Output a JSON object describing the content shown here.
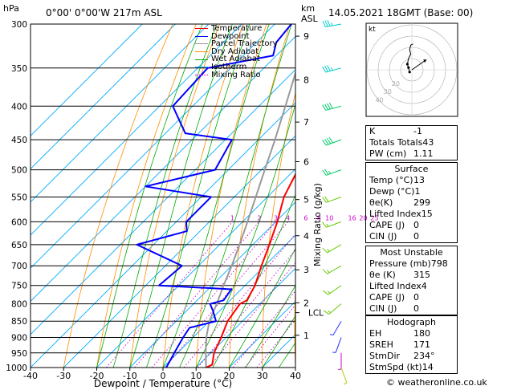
{
  "header": {
    "location": "0°00' 0°00'W  217m  ASL",
    "datetime": "14.05.2021  18GMT  (Base: 00)",
    "hpa_label": "hPa",
    "km_label": "km",
    "asl_label": "ASL"
  },
  "chart_data": {
    "type": "skew-t log-p",
    "xlabel": "Dewpoint / Temperature (°C)",
    "ylabel_right": "Mixing Ratio (g/kg)",
    "x_ticks": [
      -40,
      -30,
      -20,
      -10,
      0,
      10,
      20,
      30,
      40
    ],
    "pressure_levels": [
      300,
      350,
      400,
      450,
      500,
      550,
      600,
      650,
      700,
      750,
      800,
      850,
      900,
      950,
      1000
    ],
    "km_ticks": [
      {
        "km": 9,
        "p": 313
      },
      {
        "km": 8,
        "p": 365
      },
      {
        "km": 7,
        "p": 423
      },
      {
        "km": 6,
        "p": 486
      },
      {
        "km": 5,
        "p": 555
      },
      {
        "km": 4,
        "p": 630
      },
      {
        "km": 3,
        "p": 710
      },
      {
        "km": 2,
        "p": 797
      },
      {
        "km": 1,
        "p": 893
      }
    ],
    "lcl": {
      "label": "LCL",
      "p": 825
    },
    "mixing_ratio_labels": [
      "1",
      "2",
      "3",
      "4",
      "6",
      "8",
      "10",
      "16",
      "20",
      "25"
    ],
    "mixing_ratio_values": [
      1,
      2,
      3,
      4,
      6,
      8,
      10,
      16,
      20,
      25
    ],
    "temperature_profile": [
      {
        "p": 1000,
        "t": 13.0
      },
      {
        "p": 990,
        "t": 14.0
      },
      {
        "p": 950,
        "t": 11.0
      },
      {
        "p": 900,
        "t": 8.5
      },
      {
        "p": 850,
        "t": 5.5
      },
      {
        "p": 800,
        "t": 4.0
      },
      {
        "p": 790,
        "t": 5.0
      },
      {
        "p": 750,
        "t": 3.0
      },
      {
        "p": 700,
        "t": -1.0
      },
      {
        "p": 650,
        "t": -5.0
      },
      {
        "p": 600,
        "t": -9.5
      },
      {
        "p": 550,
        "t": -15.0
      },
      {
        "p": 500,
        "t": -19.0
      },
      {
        "p": 450,
        "t": -25.0
      },
      {
        "p": 420,
        "t": -26.0
      },
      {
        "p": 400,
        "t": -30.0
      },
      {
        "p": 350,
        "t": -38.0
      },
      {
        "p": 300,
        "t": -45.0
      }
    ],
    "dewpoint_profile": [
      {
        "p": 1000,
        "t": 1.0
      },
      {
        "p": 950,
        "t": -1.0
      },
      {
        "p": 900,
        "t": -3.0
      },
      {
        "p": 870,
        "t": -4.0
      },
      {
        "p": 850,
        "t": 2.0
      },
      {
        "p": 820,
        "t": -2.0
      },
      {
        "p": 800,
        "t": -5.0
      },
      {
        "p": 790,
        "t": -2.0
      },
      {
        "p": 760,
        "t": -3.0
      },
      {
        "p": 750,
        "t": -26.0
      },
      {
        "p": 700,
        "t": -25.0
      },
      {
        "p": 650,
        "t": -45.0
      },
      {
        "p": 620,
        "t": -34.0
      },
      {
        "p": 600,
        "t": -37.0
      },
      {
        "p": 550,
        "t": -37.0
      },
      {
        "p": 530,
        "t": -60.0
      },
      {
        "p": 500,
        "t": -44.0
      },
      {
        "p": 450,
        "t": -48.0
      },
      {
        "p": 440,
        "t": -64.0
      },
      {
        "p": 400,
        "t": -76.0
      },
      {
        "p": 350,
        "t": -77.0
      },
      {
        "p": 335,
        "t": -61.0
      },
      {
        "p": 320,
        "t": -64.0
      },
      {
        "p": 300,
        "t": -65.0
      }
    ],
    "parcel_trajectory": [
      {
        "p": 1000,
        "t": 13.0
      },
      {
        "p": 950,
        "t": 8.5
      },
      {
        "p": 900,
        "t": 4.0
      },
      {
        "p": 850,
        "t": 0.0
      },
      {
        "p": 825,
        "t": -1.5
      },
      {
        "p": 800,
        "t": -3.0
      },
      {
        "p": 750,
        "t": -6.5
      },
      {
        "p": 700,
        "t": -10.0
      },
      {
        "p": 650,
        "t": -14.0
      },
      {
        "p": 600,
        "t": -18.5
      },
      {
        "p": 550,
        "t": -23.5
      },
      {
        "p": 500,
        "t": -29.0
      },
      {
        "p": 450,
        "t": -35.0
      },
      {
        "p": 400,
        "t": -42.0
      },
      {
        "p": 350,
        "t": -50.0
      },
      {
        "p": 300,
        "t": -58.0
      }
    ],
    "wind_barbs": [
      {
        "p": 300,
        "dir": 260,
        "kt": 35
      },
      {
        "p": 350,
        "dir": 255,
        "kt": 35
      },
      {
        "p": 400,
        "dir": 255,
        "kt": 40
      },
      {
        "p": 450,
        "dir": 250,
        "kt": 40
      },
      {
        "p": 500,
        "dir": 250,
        "kt": 25
      },
      {
        "p": 550,
        "dir": 250,
        "kt": 20
      },
      {
        "p": 600,
        "dir": 250,
        "kt": 15
      },
      {
        "p": 650,
        "dir": 240,
        "kt": 15
      },
      {
        "p": 700,
        "dir": 240,
        "kt": 15
      },
      {
        "p": 750,
        "dir": 235,
        "kt": 15
      },
      {
        "p": 800,
        "dir": 230,
        "kt": 15
      },
      {
        "p": 850,
        "dir": 210,
        "kt": 5
      },
      {
        "p": 900,
        "dir": 200,
        "kt": 5
      },
      {
        "p": 950,
        "dir": 180,
        "kt": 5
      },
      {
        "p": 1000,
        "dir": 160,
        "kt": 5
      }
    ]
  },
  "legend": [
    {
      "label": "Temperature",
      "color": "#ff0000",
      "style": "solid"
    },
    {
      "label": "Dewpoint",
      "color": "#0000ff",
      "style": "solid"
    },
    {
      "label": "Parcel Trajectory",
      "color": "#999999",
      "style": "solid"
    },
    {
      "label": "Dry Adiabat",
      "color": "#ff8c00",
      "style": "solid"
    },
    {
      "label": "Wet Adiabat",
      "color": "#00aa00",
      "style": "solid"
    },
    {
      "label": "Isotherm",
      "color": "#00aaff",
      "style": "solid"
    },
    {
      "label": "Mixing Ratio",
      "color": "#cc00cc",
      "style": "dotted"
    }
  ],
  "hodograph": {
    "label": "kt",
    "rings": [
      "10",
      "20",
      "30",
      "40"
    ],
    "ring_labels": [
      "20",
      "30",
      "40"
    ],
    "trace_kt": [
      [
        -2,
        -2
      ],
      [
        -3,
        2
      ],
      [
        -4,
        5
      ],
      [
        -3,
        10
      ],
      [
        -1,
        14
      ],
      [
        -2,
        18
      ],
      [
        -1,
        22
      ],
      [
        1,
        23
      ]
    ],
    "storm_motion_kt": [
      10,
      7
    ]
  },
  "indices": {
    "k": {
      "label": "K",
      "value": "-1"
    },
    "tt": {
      "label": "Totals Totals",
      "value": "43"
    },
    "pw": {
      "label": "PW (cm)",
      "value": "1.11"
    }
  },
  "surface": {
    "title": "Surface",
    "temp": {
      "label": "Temp (°C)",
      "value": "13"
    },
    "dewp": {
      "label": "Dewp (°C)",
      "value": "1"
    },
    "theta_e": {
      "label": "θe(K)",
      "value": "299"
    },
    "li": {
      "label": "Lifted Index",
      "value": "15"
    },
    "cape": {
      "label": "CAPE (J)",
      "value": "0"
    },
    "cin": {
      "label": "CIN (J)",
      "value": "0"
    }
  },
  "most_unstable": {
    "title": "Most Unstable",
    "pressure": {
      "label": "Pressure (mb)",
      "value": "798"
    },
    "theta_e": {
      "label": "θe (K)",
      "value": "315"
    },
    "li": {
      "label": "Lifted Index",
      "value": "4"
    },
    "cape": {
      "label": "CAPE (J)",
      "value": "0"
    },
    "cin": {
      "label": "CIN (J)",
      "value": "0"
    }
  },
  "hodo_table": {
    "title": "Hodograph",
    "eh": {
      "label": "EH",
      "value": "180"
    },
    "sreh": {
      "label": "SREH",
      "value": "171"
    },
    "stmdir": {
      "label": "StmDir",
      "value": "234°"
    },
    "stmspd": {
      "label": "StmSpd (kt)",
      "value": "14"
    }
  },
  "footer": {
    "copyright": "© weatheronline.co.uk"
  }
}
